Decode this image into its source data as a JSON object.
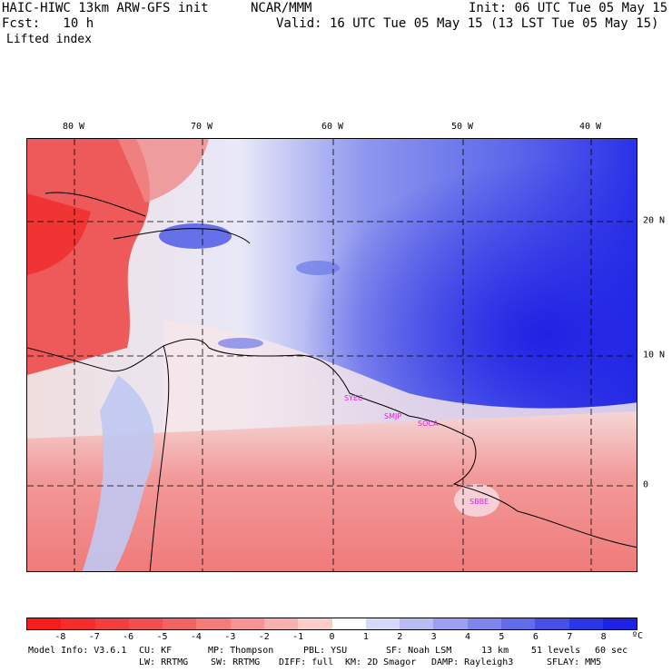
{
  "header": {
    "model_title": "HAIC-HIWC 13km ARW-GFS init",
    "org": "NCAR/MMM",
    "init": "Init: 06 UTC Tue 05 May 15",
    "fcst": "Fcst:   10 h",
    "valid": "Valid: 16 UTC Tue 05 May 15 (13 LST Tue 05 May 15)",
    "field": "Lifted index"
  },
  "map": {
    "lon_labels": [
      "80 W",
      "70 W",
      "60 W",
      "50 W",
      "40 W"
    ],
    "lat_labels": [
      "20 N",
      "10 N",
      "0"
    ],
    "stations": [
      "SYEC",
      "SMJP",
      "SOCA",
      "SBBE"
    ],
    "colors": {
      "land": "#ee5a5a",
      "neutral": "#f4eeee",
      "ocean": "#6a78e8",
      "deep": "#2121e6",
      "station": "#e020e0"
    }
  },
  "colorbar": {
    "ticks": [
      "-8",
      "-7",
      "-6",
      "-5",
      "-4",
      "-3",
      "-2",
      "-1",
      "0",
      "1",
      "2",
      "3",
      "4",
      "5",
      "6",
      "7",
      "8"
    ],
    "unit": "ºC",
    "colors": [
      "#f71d1d",
      "#f42c2c",
      "#f23e3e",
      "#f05050",
      "#f26464",
      "#f47b7b",
      "#f69494",
      "#f8b0b0",
      "#facccc",
      "#ffffff",
      "#d6d8f8",
      "#b9bdf4",
      "#9ba1f0",
      "#7e86ec",
      "#626bea",
      "#4650e8",
      "#2d36e6",
      "#1f22e4"
    ]
  },
  "model_info": {
    "line1": [
      "Model Info: V3.6.1",
      "CU: KF",
      "MP: Thompson",
      "PBL: YSU",
      "SF: Noah LSM",
      "13 km",
      "51 levels",
      "60 sec"
    ],
    "line2": [
      "LW: RRTMG",
      "SW: RRTMG",
      "DIFF: full",
      "KM: 2D Smagor",
      "DAMP: Rayleigh3",
      "SFLAY: MM5"
    ]
  }
}
